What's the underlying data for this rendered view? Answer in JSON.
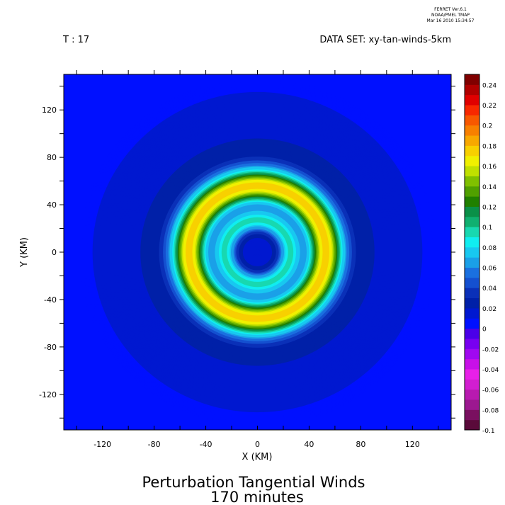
{
  "header": {
    "ferret_line1": "FERRET  Ver.6.1",
    "ferret_line2": "NOAA/PMEL TMAP",
    "ferret_line3": "Mar 16 2010 15:34:57",
    "time_label": "T : 17",
    "dataset_label": "DATA SET: xy-tan-winds-5km"
  },
  "chart_data": {
    "type": "heatmap",
    "title": "Perturbation Tangential Winds",
    "subtitle": "170 minutes",
    "xlabel": "X (KM)",
    "ylabel": "Y (KM)",
    "xlim": [
      -150,
      150
    ],
    "ylim": [
      -150,
      150
    ],
    "x_ticks": [
      -120,
      -80,
      -40,
      0,
      40,
      80,
      120
    ],
    "y_ticks": [
      120,
      80,
      40,
      0,
      -40,
      -80,
      -120
    ],
    "colorbar": {
      "levels": [
        -0.1,
        -0.09,
        -0.08,
        -0.07,
        -0.06,
        -0.05,
        -0.04,
        -0.03,
        -0.02,
        -0.01,
        0,
        0.01,
        0.02,
        0.03,
        0.04,
        0.05,
        0.06,
        0.07,
        0.08,
        0.09,
        0.1,
        0.11,
        0.12,
        0.13,
        0.14,
        0.15,
        0.16,
        0.17,
        0.18,
        0.19,
        0.2,
        0.21,
        0.22,
        0.23,
        0.24,
        0.25
      ],
      "tick_labels": [
        "0.24",
        "0.22",
        "0.2",
        "0.18",
        "0.16",
        "0.14",
        "0.12",
        "0.1",
        "0.08",
        "0.06",
        "0.04",
        "0.02",
        "0",
        "-0.02",
        "-0.04",
        "-0.06",
        "-0.08",
        "-0.1"
      ],
      "colors": [
        "#5a0a3a",
        "#7a1060",
        "#9c1890",
        "#b81ab0",
        "#d21ed0",
        "#e820e8",
        "#c810e8",
        "#a008f0",
        "#7800f0",
        "#4a00e8",
        "#0010ff",
        "#0018d0",
        "#0020a8",
        "#0a30b8",
        "#1450d0",
        "#1a70e0",
        "#1aa0e8",
        "#18c8f0",
        "#10eef0",
        "#18d8b0",
        "#10b070",
        "#0a9048",
        "#208000",
        "#50a000",
        "#80c000",
        "#c0e000",
        "#f0f000",
        "#f8d000",
        "#f8a800",
        "#f88000",
        "#f85800",
        "#f82800",
        "#e00000",
        "#b00000",
        "#800000"
      ]
    },
    "field_description_values": {
      "center_x": 0,
      "center_y": 0,
      "inner_ring_radius_km": 25,
      "outer_ring_radius_km": 52,
      "inner_ring_peak": 0.08,
      "outer_ring_peak": 0.16,
      "background_value": 0,
      "halo_value": 0.01
    }
  }
}
